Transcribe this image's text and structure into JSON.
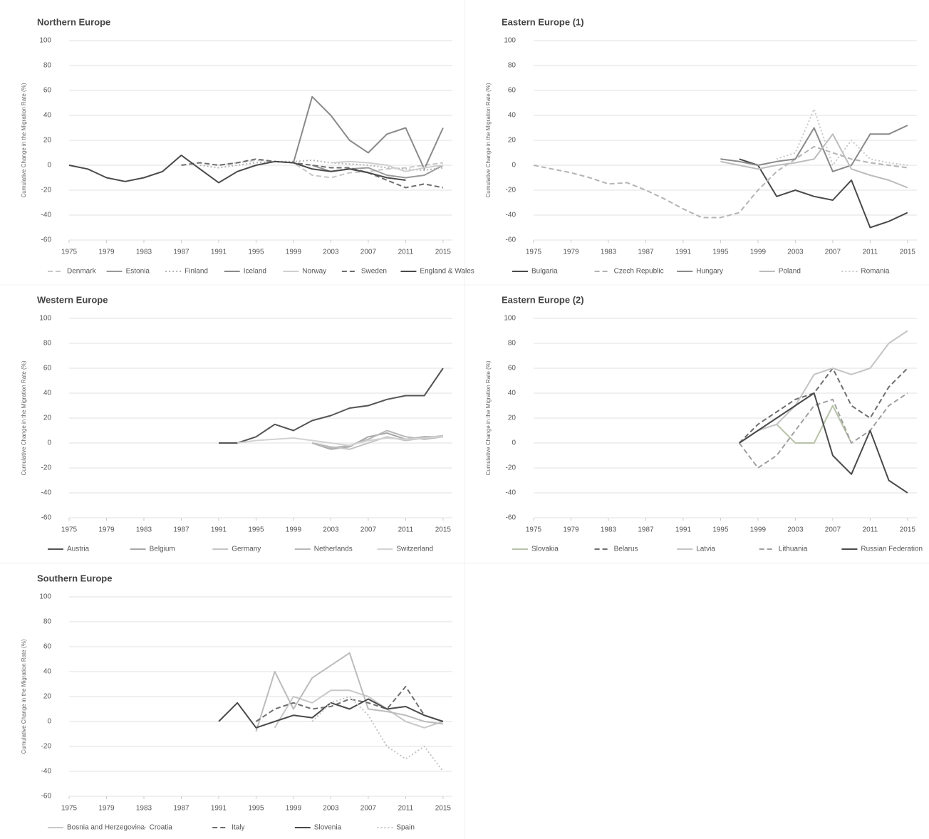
{
  "chart_data": [
    {
      "type": "line",
      "title": "Northern Europe",
      "y_label": "Cumulative Change in the Migration Rate (%)",
      "x": [
        1975,
        1977,
        1979,
        1981,
        1983,
        1985,
        1987,
        1989,
        1991,
        1993,
        1995,
        1997,
        1999,
        2001,
        2003,
        2005,
        2007,
        2009,
        2011,
        2013,
        2015
      ],
      "xlim": [
        1975,
        2016
      ],
      "xticks": [
        1975,
        1979,
        1983,
        1987,
        1991,
        1995,
        1999,
        2003,
        2007,
        2011,
        2015
      ],
      "ylim": [
        -60,
        100
      ],
      "yticks": [
        -60,
        -40,
        -20,
        0,
        20,
        40,
        60,
        80,
        100
      ],
      "grid": true,
      "legend": "bottom",
      "series": [
        {
          "name": "Denmark",
          "color": "#c8c8c8",
          "dash": "dashed",
          "values": [
            null,
            null,
            null,
            null,
            null,
            null,
            null,
            null,
            0,
            2,
            4,
            3,
            2,
            -8,
            -10,
            -6,
            -5,
            -3,
            -2,
            0,
            2
          ]
        },
        {
          "name": "Estonia",
          "color": "#9a9a9a",
          "dash": "solid",
          "values": [
            null,
            null,
            null,
            null,
            null,
            null,
            null,
            null,
            null,
            null,
            null,
            null,
            null,
            0,
            -5,
            -3,
            -2,
            -8,
            -10,
            -8,
            0
          ]
        },
        {
          "name": "Finland",
          "color": "#b4b4b4",
          "dash": "dotted",
          "values": [
            null,
            null,
            null,
            null,
            null,
            null,
            null,
            0,
            -2,
            0,
            2,
            3,
            3,
            4,
            2,
            1,
            0,
            -2,
            -3,
            -4,
            -2
          ]
        },
        {
          "name": "Iceland",
          "color": "#8a8a8a",
          "dash": "solid",
          "values": [
            null,
            null,
            null,
            null,
            null,
            null,
            null,
            null,
            null,
            null,
            null,
            null,
            2,
            55,
            40,
            20,
            10,
            25,
            30,
            -3,
            30
          ]
        },
        {
          "name": "Norway",
          "color": "#d0d0d0",
          "dash": "solid",
          "values": [
            null,
            null,
            null,
            null,
            null,
            null,
            null,
            null,
            null,
            null,
            null,
            null,
            null,
            null,
            2,
            3,
            2,
            0,
            -5,
            -2,
            0
          ]
        },
        {
          "name": "Sweden",
          "color": "#6e6e6e",
          "dash": "dashed",
          "values": [
            null,
            null,
            null,
            null,
            null,
            null,
            0,
            2,
            0,
            2,
            5,
            3,
            2,
            0,
            -2,
            -2,
            -6,
            -12,
            -18,
            -15,
            -18
          ]
        },
        {
          "name": "England & Wales",
          "color": "#4a4a4a",
          "dash": "solid",
          "values": [
            0,
            -3,
            -10,
            -13,
            -10,
            -5,
            8,
            -3,
            -14,
            -5,
            0,
            3,
            2,
            -3,
            -5,
            -3,
            -6,
            -10,
            -12,
            null,
            null
          ]
        }
      ]
    },
    {
      "type": "line",
      "title": "Eastern Europe (1)",
      "y_label": "Cumulative Change in the Migration Rate (%)",
      "x": [
        1975,
        1977,
        1979,
        1981,
        1983,
        1985,
        1987,
        1989,
        1991,
        1993,
        1995,
        1997,
        1999,
        2001,
        2003,
        2005,
        2007,
        2009,
        2011,
        2013,
        2015
      ],
      "xlim": [
        1975,
        2016
      ],
      "xticks": [
        1975,
        1979,
        1983,
        1987,
        1991,
        1995,
        1999,
        2003,
        2007,
        2011,
        2015
      ],
      "ylim": [
        -60,
        100
      ],
      "yticks": [
        -60,
        -40,
        -20,
        0,
        20,
        40,
        60,
        80,
        100
      ],
      "grid": true,
      "legend": "bottom",
      "series": [
        {
          "name": "Bulgaria",
          "color": "#4a4a4a",
          "dash": "solid",
          "values": [
            null,
            null,
            null,
            null,
            null,
            null,
            null,
            null,
            null,
            null,
            null,
            5,
            0,
            -25,
            -20,
            -25,
            -28,
            -12,
            -50,
            -45,
            -38
          ]
        },
        {
          "name": "Czech Republic",
          "color": "#b4b4b4",
          "dash": "dashed",
          "values": [
            0,
            -3,
            -6,
            -10,
            -15,
            -14,
            -20,
            -27,
            -35,
            -42,
            -42,
            -38,
            -20,
            -5,
            5,
            15,
            10,
            5,
            2,
            0,
            -2
          ]
        },
        {
          "name": "Hungary",
          "color": "#8a8a8a",
          "dash": "solid",
          "values": [
            null,
            null,
            null,
            null,
            null,
            null,
            null,
            null,
            null,
            null,
            5,
            3,
            0,
            3,
            5,
            30,
            -5,
            0,
            25,
            25,
            32
          ]
        },
        {
          "name": "Poland",
          "color": "#bcbcbc",
          "dash": "solid",
          "values": [
            null,
            null,
            null,
            null,
            null,
            null,
            null,
            null,
            null,
            null,
            3,
            0,
            -3,
            0,
            2,
            5,
            25,
            -3,
            -8,
            -12,
            -18
          ]
        },
        {
          "name": "Romania",
          "color": "#c8c8c8",
          "dash": "dotted",
          "values": [
            null,
            null,
            null,
            null,
            null,
            null,
            null,
            null,
            null,
            null,
            null,
            null,
            null,
            5,
            10,
            45,
            0,
            20,
            5,
            2,
            0
          ]
        }
      ]
    },
    {
      "type": "line",
      "title": "Western Europe",
      "y_label": "Cumulative Change in the Migration Rate (%)",
      "x": [
        1975,
        1977,
        1979,
        1981,
        1983,
        1985,
        1987,
        1989,
        1991,
        1993,
        1995,
        1997,
        1999,
        2001,
        2003,
        2005,
        2007,
        2009,
        2011,
        2013,
        2015
      ],
      "xlim": [
        1975,
        2016
      ],
      "xticks": [
        1975,
        1979,
        1983,
        1987,
        1991,
        1995,
        1999,
        2003,
        2007,
        2011,
        2015
      ],
      "ylim": [
        -60,
        100
      ],
      "yticks": [
        -60,
        -40,
        -20,
        0,
        20,
        40,
        60,
        80,
        100
      ],
      "grid": true,
      "legend": "bottom",
      "series": [
        {
          "name": "Austria",
          "color": "#555555",
          "dash": "solid",
          "values": [
            null,
            null,
            null,
            null,
            null,
            null,
            null,
            null,
            0,
            0,
            5,
            15,
            10,
            18,
            22,
            28,
            30,
            35,
            38,
            38,
            60
          ]
        },
        {
          "name": "Belgium",
          "color": "#a8a8a8",
          "dash": "solid",
          "values": [
            null,
            null,
            null,
            null,
            null,
            null,
            null,
            null,
            null,
            null,
            null,
            null,
            null,
            0,
            -5,
            -3,
            5,
            8,
            3,
            5,
            5
          ]
        },
        {
          "name": "Germany",
          "color": "#c4c4c4",
          "dash": "solid",
          "values": [
            null,
            null,
            null,
            null,
            null,
            null,
            null,
            null,
            null,
            null,
            null,
            null,
            null,
            0,
            -3,
            -5,
            0,
            5,
            2,
            4,
            6
          ]
        },
        {
          "name": "Netherlands",
          "color": "#b8b8b8",
          "dash": "solid",
          "values": [
            null,
            null,
            null,
            null,
            null,
            null,
            null,
            null,
            null,
            null,
            null,
            null,
            null,
            0,
            -4,
            -2,
            3,
            10,
            5,
            3,
            5
          ]
        },
        {
          "name": "Switzerland",
          "color": "#d2d2d2",
          "dash": "solid",
          "values": [
            null,
            null,
            null,
            null,
            null,
            null,
            null,
            null,
            null,
            0,
            2,
            3,
            4,
            2,
            0,
            -2,
            2,
            4,
            3,
            4,
            5
          ]
        }
      ]
    },
    {
      "type": "line",
      "title": "Eastern Europe (2)",
      "y_label": "Cumulative Change in the Migration Rate (%)",
      "x": [
        1975,
        1977,
        1979,
        1981,
        1983,
        1985,
        1987,
        1989,
        1991,
        1993,
        1995,
        1997,
        1999,
        2001,
        2003,
        2005,
        2007,
        2009,
        2011,
        2013,
        2015
      ],
      "xlim": [
        1975,
        2016
      ],
      "xticks": [
        1975,
        1979,
        1983,
        1987,
        1991,
        1995,
        1999,
        2003,
        2007,
        2011,
        2015
      ],
      "ylim": [
        -60,
        100
      ],
      "yticks": [
        -60,
        -40,
        -20,
        0,
        20,
        40,
        60,
        80,
        100
      ],
      "grid": true,
      "legend": "bottom",
      "series": [
        {
          "name": "Slovakia",
          "color": "#b8c4a8",
          "dash": "solid",
          "values": [
            null,
            null,
            null,
            null,
            null,
            null,
            null,
            null,
            null,
            null,
            null,
            null,
            null,
            15,
            0,
            0,
            30,
            0,
            null,
            null,
            null
          ]
        },
        {
          "name": "Belarus",
          "color": "#6e6e6e",
          "dash": "dashed",
          "values": [
            null,
            null,
            null,
            null,
            null,
            null,
            null,
            null,
            null,
            null,
            null,
            0,
            15,
            25,
            35,
            40,
            60,
            30,
            20,
            45,
            60
          ]
        },
        {
          "name": "Latvia",
          "color": "#c4c4c4",
          "dash": "solid",
          "values": [
            null,
            null,
            null,
            null,
            null,
            null,
            null,
            null,
            null,
            null,
            null,
            0,
            10,
            15,
            30,
            55,
            60,
            55,
            60,
            80,
            90
          ]
        },
        {
          "name": "Lithuania",
          "color": "#a0a0a0",
          "dash": "dashed",
          "values": [
            null,
            null,
            null,
            null,
            null,
            null,
            null,
            null,
            null,
            null,
            null,
            0,
            -20,
            -10,
            10,
            30,
            35,
            0,
            10,
            30,
            40
          ]
        },
        {
          "name": "Russian Federation",
          "color": "#4a4a4a",
          "dash": "solid",
          "values": [
            null,
            null,
            null,
            null,
            null,
            null,
            null,
            null,
            null,
            null,
            null,
            0,
            10,
            20,
            30,
            40,
            -10,
            -25,
            10,
            -30,
            -40
          ]
        }
      ]
    },
    {
      "type": "line",
      "title": "Southern Europe",
      "y_label": "Cumulative Change in the Migration Rate (%)",
      "x": [
        1975,
        1977,
        1979,
        1981,
        1983,
        1985,
        1987,
        1989,
        1991,
        1993,
        1995,
        1997,
        1999,
        2001,
        2003,
        2005,
        2007,
        2009,
        2011,
        2013,
        2015
      ],
      "xlim": [
        1975,
        2016
      ],
      "xticks": [
        1975,
        1979,
        1983,
        1987,
        1991,
        1995,
        1999,
        2003,
        2007,
        2011,
        2015
      ],
      "ylim": [
        -60,
        100
      ],
      "yticks": [
        -60,
        -40,
        -20,
        0,
        20,
        40,
        60,
        80,
        100
      ],
      "grid": true,
      "legend": "bottom",
      "series": [
        {
          "name": "Bosnia and Herzegovina",
          "color": "#c8c8c8",
          "dash": "solid",
          "values": [
            null,
            null,
            null,
            null,
            null,
            null,
            null,
            null,
            null,
            null,
            null,
            -5,
            20,
            15,
            25,
            25,
            20,
            10,
            0,
            -5,
            0
          ]
        },
        {
          "name": "Croatia",
          "color": "#bcbcbc",
          "dash": "solid",
          "values": [
            null,
            null,
            null,
            null,
            null,
            null,
            null,
            null,
            null,
            null,
            -8,
            40,
            10,
            35,
            45,
            55,
            10,
            8,
            5,
            0,
            -2
          ]
        },
        {
          "name": "Italy",
          "color": "#6e6e6e",
          "dash": "dashed",
          "values": [
            null,
            null,
            null,
            null,
            null,
            null,
            null,
            null,
            null,
            null,
            0,
            10,
            15,
            10,
            12,
            18,
            15,
            10,
            28,
            5,
            0
          ]
        },
        {
          "name": "Slovenia",
          "color": "#4a4a4a",
          "dash": "solid",
          "values": [
            null,
            null,
            null,
            null,
            null,
            null,
            null,
            null,
            0,
            15,
            -5,
            0,
            5,
            3,
            15,
            10,
            18,
            10,
            12,
            5,
            0
          ]
        },
        {
          "name": "Spain",
          "color": "#c4c4c4",
          "dash": "dotted",
          "values": [
            null,
            null,
            null,
            null,
            null,
            null,
            null,
            null,
            null,
            null,
            null,
            null,
            null,
            0,
            15,
            20,
            5,
            -20,
            -30,
            -20,
            -40
          ]
        }
      ]
    }
  ]
}
